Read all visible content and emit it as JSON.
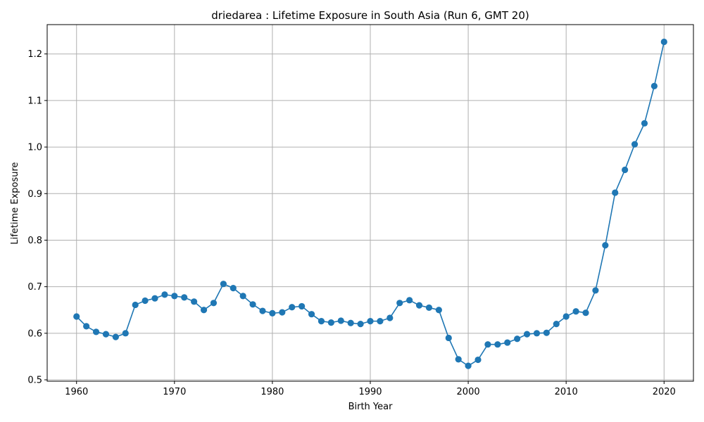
{
  "chart_data": {
    "type": "line",
    "title": "driedarea : Lifetime Exposure in South Asia (Run 6, GMT 20)",
    "xlabel": "Birth Year",
    "ylabel": "Lifetime Exposure",
    "xlim": [
      1957,
      2023
    ],
    "ylim": [
      0.497,
      1.263
    ],
    "xticks": [
      1960,
      1970,
      1980,
      1990,
      2000,
      2010,
      2020
    ],
    "yticks": [
      0.5,
      0.6,
      0.7,
      0.8,
      0.9,
      1.0,
      1.1,
      1.2
    ],
    "ytick_labels": [
      "0.5",
      "0.6",
      "0.7",
      "0.8",
      "0.9",
      "1.0",
      "1.1",
      "1.2"
    ],
    "grid": true,
    "legend": "none",
    "color": "#1f77b4",
    "x": [
      1960,
      1961,
      1962,
      1963,
      1964,
      1965,
      1966,
      1967,
      1968,
      1969,
      1970,
      1971,
      1972,
      1973,
      1974,
      1975,
      1976,
      1977,
      1978,
      1979,
      1980,
      1981,
      1982,
      1983,
      1984,
      1985,
      1986,
      1987,
      1988,
      1989,
      1990,
      1991,
      1992,
      1993,
      1994,
      1995,
      1996,
      1997,
      1998,
      1999,
      2000,
      2001,
      2002,
      2003,
      2004,
      2005,
      2006,
      2007,
      2008,
      2009,
      2010,
      2011,
      2012,
      2013,
      2014,
      2015,
      2016,
      2017,
      2018,
      2019,
      2020
    ],
    "y": [
      0.636,
      0.615,
      0.603,
      0.598,
      0.592,
      0.6,
      0.661,
      0.67,
      0.675,
      0.683,
      0.68,
      0.677,
      0.668,
      0.65,
      0.665,
      0.706,
      0.697,
      0.68,
      0.662,
      0.648,
      0.643,
      0.645,
      0.656,
      0.658,
      0.641,
      0.626,
      0.623,
      0.627,
      0.622,
      0.62,
      0.626,
      0.626,
      0.633,
      0.665,
      0.671,
      0.66,
      0.655,
      0.65,
      0.59,
      0.544,
      0.53,
      0.543,
      0.576,
      0.576,
      0.58,
      0.588,
      0.598,
      0.6,
      0.601,
      0.62,
      0.636,
      0.647,
      0.644,
      0.692,
      0.789,
      0.902,
      0.951,
      1.006,
      1.051,
      1.131,
      1.226
    ]
  }
}
